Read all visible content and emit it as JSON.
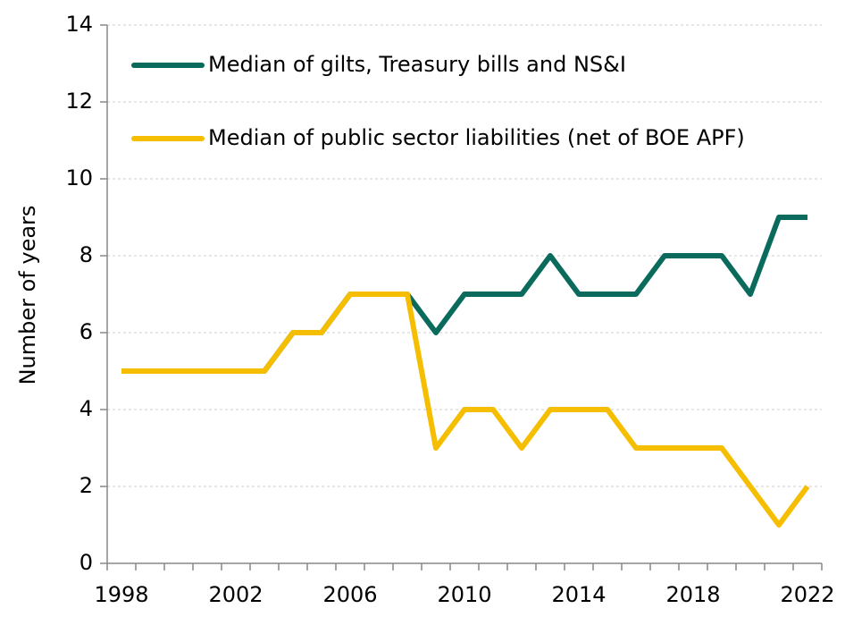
{
  "chart_data": {
    "type": "line",
    "y_label": "Number of years",
    "categories": [
      "1998",
      null,
      null,
      null,
      "2002",
      null,
      null,
      null,
      "2006",
      null,
      null,
      null,
      "2010",
      null,
      null,
      null,
      "2014",
      null,
      null,
      null,
      "2018",
      null,
      null,
      null,
      "2022"
    ],
    "series": [
      {
        "name": "Median of gilts, Treasury bills and NS&I",
        "color": "#0a6b5c",
        "values": [
          5,
          5,
          5,
          5,
          5,
          5,
          6,
          6,
          7,
          7,
          7,
          6,
          7,
          7,
          7,
          8,
          7,
          7,
          7,
          8,
          8,
          8,
          7,
          9,
          9
        ]
      },
      {
        "name": "Median of public sector liabilities (net of BOE APF)",
        "color": "#f6be00",
        "values": [
          5,
          5,
          5,
          5,
          5,
          5,
          6,
          6,
          7,
          7,
          7,
          3,
          4,
          4,
          3,
          4,
          4,
          4,
          3,
          3,
          3,
          3,
          2,
          1,
          2
        ]
      }
    ],
    "ylim": [
      0,
      14
    ],
    "yticks": [
      0,
      2,
      4,
      6,
      8,
      10,
      12,
      14
    ],
    "grid": true,
    "legend": "top-left"
  }
}
